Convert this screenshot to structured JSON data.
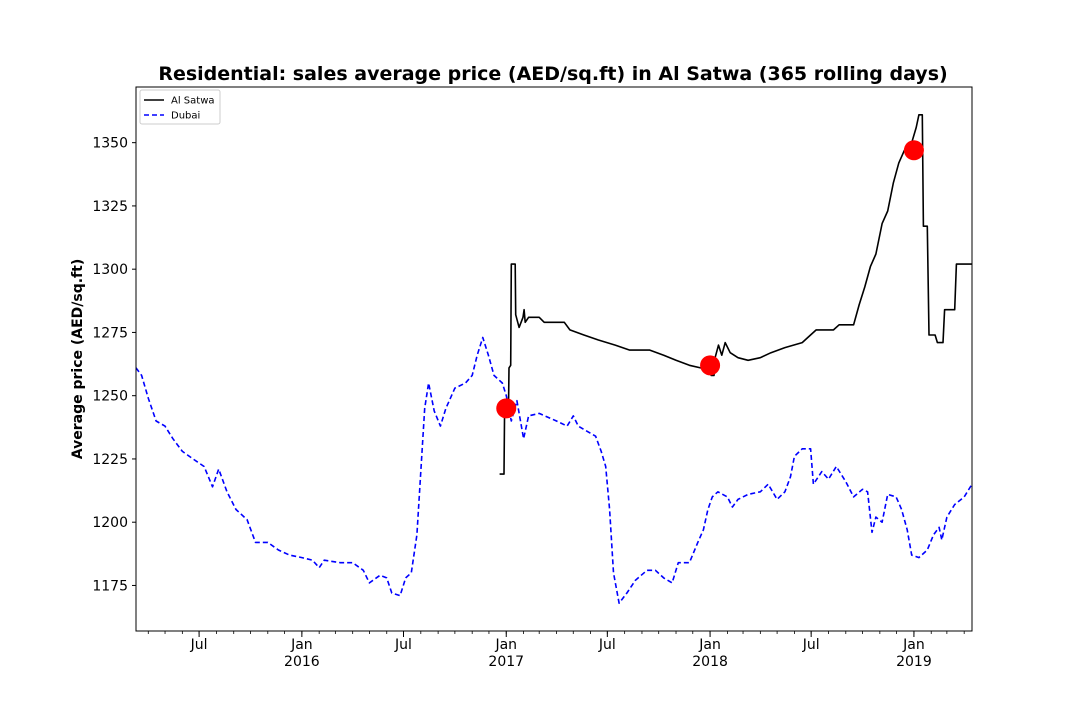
{
  "chart_data": {
    "type": "line",
    "title": "Residential: sales average price (AED/sq.ft) in Al Satwa (365 rolling days)",
    "xlabel": "",
    "ylabel": "Average price (AED/sq.ft)",
    "xlim": [
      "2015-03-10",
      "2019-04-15"
    ],
    "ylim": [
      1157,
      1372
    ],
    "y_ticks": [
      1175,
      1200,
      1225,
      1250,
      1275,
      1300,
      1325,
      1350
    ],
    "x_ticks": [
      {
        "date": "2015-07-01",
        "label": "Jul",
        "year": ""
      },
      {
        "date": "2016-01-01",
        "label": "Jan",
        "year": "2016"
      },
      {
        "date": "2016-07-01",
        "label": "Jul",
        "year": ""
      },
      {
        "date": "2017-01-01",
        "label": "Jan",
        "year": "2017"
      },
      {
        "date": "2017-07-01",
        "label": "Jul",
        "year": ""
      },
      {
        "date": "2018-01-01",
        "label": "Jan",
        "year": "2018"
      },
      {
        "date": "2018-07-01",
        "label": "Jul",
        "year": ""
      },
      {
        "date": "2019-01-01",
        "label": "Jan",
        "year": "2019"
      }
    ],
    "grid": false,
    "legend_position": "top-left",
    "series": [
      {
        "name": "Al Satwa",
        "color": "#000000",
        "style": "solid",
        "points": [
          [
            "2016-12-20",
            1219
          ],
          [
            "2016-12-28",
            1219
          ],
          [
            "2016-12-29",
            1245
          ],
          [
            "2017-01-05",
            1245
          ],
          [
            "2017-01-06",
            1261
          ],
          [
            "2017-01-09",
            1262
          ],
          [
            "2017-01-10",
            1302
          ],
          [
            "2017-01-17",
            1302
          ],
          [
            "2017-01-18",
            1282
          ],
          [
            "2017-01-24",
            1277
          ],
          [
            "2017-01-31",
            1281
          ],
          [
            "2017-02-02",
            1284
          ],
          [
            "2017-02-04",
            1279
          ],
          [
            "2017-02-10",
            1281
          ],
          [
            "2017-03-01",
            1281
          ],
          [
            "2017-03-10",
            1279
          ],
          [
            "2017-04-15",
            1279
          ],
          [
            "2017-04-25",
            1276
          ],
          [
            "2017-05-20",
            1274
          ],
          [
            "2017-06-15",
            1272
          ],
          [
            "2017-07-15",
            1270
          ],
          [
            "2017-08-10",
            1268
          ],
          [
            "2017-09-15",
            1268
          ],
          [
            "2017-10-10",
            1266
          ],
          [
            "2017-11-01",
            1264
          ],
          [
            "2017-11-25",
            1262
          ],
          [
            "2017-12-15",
            1261
          ],
          [
            "2017-12-29",
            1262
          ],
          [
            "2018-01-03",
            1258
          ],
          [
            "2018-01-08",
            1258
          ],
          [
            "2018-01-10",
            1265
          ],
          [
            "2018-01-16",
            1270
          ],
          [
            "2018-01-22",
            1266
          ],
          [
            "2018-01-28",
            1271
          ],
          [
            "2018-02-06",
            1267
          ],
          [
            "2018-02-20",
            1265
          ],
          [
            "2018-03-10",
            1264
          ],
          [
            "2018-04-01",
            1265
          ],
          [
            "2018-04-20",
            1267
          ],
          [
            "2018-05-15",
            1269
          ],
          [
            "2018-06-15",
            1271
          ],
          [
            "2018-06-25",
            1273
          ],
          [
            "2018-07-10",
            1276
          ],
          [
            "2018-08-10",
            1276
          ],
          [
            "2018-08-20",
            1278
          ],
          [
            "2018-09-15",
            1278
          ],
          [
            "2018-09-25",
            1286
          ],
          [
            "2018-10-05",
            1293
          ],
          [
            "2018-10-15",
            1301
          ],
          [
            "2018-10-25",
            1306
          ],
          [
            "2018-11-05",
            1318
          ],
          [
            "2018-11-15",
            1323
          ],
          [
            "2018-11-25",
            1334
          ],
          [
            "2018-12-05",
            1342
          ],
          [
            "2018-12-15",
            1347
          ],
          [
            "2018-12-28",
            1350
          ],
          [
            "2019-01-05",
            1356
          ],
          [
            "2019-01-10",
            1361
          ],
          [
            "2019-01-16",
            1361
          ],
          [
            "2019-01-18",
            1317
          ],
          [
            "2019-01-25",
            1317
          ],
          [
            "2019-01-28",
            1274
          ],
          [
            "2019-02-08",
            1274
          ],
          [
            "2019-02-12",
            1271
          ],
          [
            "2019-02-22",
            1271
          ],
          [
            "2019-02-25",
            1284
          ],
          [
            "2019-03-15",
            1284
          ],
          [
            "2019-03-18",
            1302
          ],
          [
            "2019-04-15",
            1302
          ]
        ]
      },
      {
        "name": "Dubai",
        "color": "#0000ff",
        "style": "dashed",
        "points": [
          [
            "2015-03-10",
            1261
          ],
          [
            "2015-03-20",
            1258
          ],
          [
            "2015-04-01",
            1249
          ],
          [
            "2015-04-15",
            1240
          ],
          [
            "2015-05-01",
            1238
          ],
          [
            "2015-05-15",
            1233
          ],
          [
            "2015-06-01",
            1228
          ],
          [
            "2015-06-20",
            1225
          ],
          [
            "2015-07-10",
            1222
          ],
          [
            "2015-07-25",
            1214
          ],
          [
            "2015-08-05",
            1221
          ],
          [
            "2015-08-20",
            1212
          ],
          [
            "2015-09-05",
            1205
          ],
          [
            "2015-09-25",
            1201
          ],
          [
            "2015-10-10",
            1192
          ],
          [
            "2015-11-01",
            1192
          ],
          [
            "2015-11-20",
            1189
          ],
          [
            "2015-12-10",
            1187
          ],
          [
            "2016-01-01",
            1186
          ],
          [
            "2016-01-20",
            1185
          ],
          [
            "2016-02-01",
            1182
          ],
          [
            "2016-02-10",
            1185
          ],
          [
            "2016-03-10",
            1184
          ],
          [
            "2016-04-01",
            1184
          ],
          [
            "2016-04-20",
            1181
          ],
          [
            "2016-05-01",
            1176
          ],
          [
            "2016-05-20",
            1179
          ],
          [
            "2016-06-01",
            1178
          ],
          [
            "2016-06-10",
            1172
          ],
          [
            "2016-06-25",
            1171
          ],
          [
            "2016-07-05",
            1178
          ],
          [
            "2016-07-15",
            1180
          ],
          [
            "2016-07-25",
            1195
          ],
          [
            "2016-08-01",
            1220
          ],
          [
            "2016-08-08",
            1245
          ],
          [
            "2016-08-15",
            1255
          ],
          [
            "2016-08-25",
            1244
          ],
          [
            "2016-09-05",
            1238
          ],
          [
            "2016-09-15",
            1245
          ],
          [
            "2016-10-01",
            1253
          ],
          [
            "2016-10-20",
            1255
          ],
          [
            "2016-11-01",
            1258
          ],
          [
            "2016-11-10",
            1266
          ],
          [
            "2016-11-20",
            1273
          ],
          [
            "2016-11-30",
            1266
          ],
          [
            "2016-12-10",
            1258
          ],
          [
            "2016-12-25",
            1255
          ],
          [
            "2017-01-01",
            1250
          ],
          [
            "2017-01-10",
            1240
          ],
          [
            "2017-01-20",
            1248
          ],
          [
            "2017-02-01",
            1233
          ],
          [
            "2017-02-10",
            1242
          ],
          [
            "2017-03-01",
            1243
          ],
          [
            "2017-04-01",
            1240
          ],
          [
            "2017-04-20",
            1238
          ],
          [
            "2017-05-01",
            1242
          ],
          [
            "2017-05-10",
            1238
          ],
          [
            "2017-05-25",
            1236
          ],
          [
            "2017-06-10",
            1234
          ],
          [
            "2017-06-20",
            1228
          ],
          [
            "2017-06-28",
            1222
          ],
          [
            "2017-07-05",
            1205
          ],
          [
            "2017-07-12",
            1180
          ],
          [
            "2017-07-22",
            1168
          ],
          [
            "2017-08-05",
            1172
          ],
          [
            "2017-08-20",
            1177
          ],
          [
            "2017-09-10",
            1181
          ],
          [
            "2017-09-25",
            1181
          ],
          [
            "2017-10-10",
            1178
          ],
          [
            "2017-10-25",
            1176
          ],
          [
            "2017-11-05",
            1184
          ],
          [
            "2017-11-25",
            1184
          ],
          [
            "2017-12-10",
            1192
          ],
          [
            "2017-12-20",
            1197
          ],
          [
            "2017-12-28",
            1205
          ],
          [
            "2018-01-05",
            1210
          ],
          [
            "2018-01-15",
            1212
          ],
          [
            "2018-02-01",
            1210
          ],
          [
            "2018-02-10",
            1206
          ],
          [
            "2018-02-20",
            1209
          ],
          [
            "2018-03-10",
            1211
          ],
          [
            "2018-04-01",
            1212
          ],
          [
            "2018-04-15",
            1215
          ],
          [
            "2018-05-01",
            1209
          ],
          [
            "2018-05-15",
            1212
          ],
          [
            "2018-05-25",
            1218
          ],
          [
            "2018-06-01",
            1226
          ],
          [
            "2018-06-15",
            1229
          ],
          [
            "2018-06-30",
            1229
          ],
          [
            "2018-07-05",
            1215
          ],
          [
            "2018-07-20",
            1220
          ],
          [
            "2018-08-01",
            1217
          ],
          [
            "2018-08-15",
            1222
          ],
          [
            "2018-09-01",
            1216
          ],
          [
            "2018-09-15",
            1210
          ],
          [
            "2018-10-01",
            1213
          ],
          [
            "2018-10-10",
            1212
          ],
          [
            "2018-10-18",
            1196
          ],
          [
            "2018-10-25",
            1202
          ],
          [
            "2018-11-05",
            1200
          ],
          [
            "2018-11-15",
            1211
          ],
          [
            "2018-11-30",
            1210
          ],
          [
            "2018-12-10",
            1205
          ],
          [
            "2018-12-20",
            1197
          ],
          [
            "2018-12-28",
            1187
          ],
          [
            "2019-01-10",
            1186
          ],
          [
            "2019-01-25",
            1189
          ],
          [
            "2019-02-05",
            1195
          ],
          [
            "2019-02-15",
            1198
          ],
          [
            "2019-02-20",
            1193
          ],
          [
            "2019-03-01",
            1202
          ],
          [
            "2019-03-15",
            1207
          ],
          [
            "2019-04-01",
            1210
          ],
          [
            "2019-04-15",
            1215
          ]
        ]
      }
    ],
    "highlight_markers": {
      "color": "#ff0000",
      "points": [
        [
          "2017-01-01",
          1245
        ],
        [
          "2018-01-01",
          1262
        ],
        [
          "2019-01-01",
          1347
        ]
      ]
    }
  }
}
